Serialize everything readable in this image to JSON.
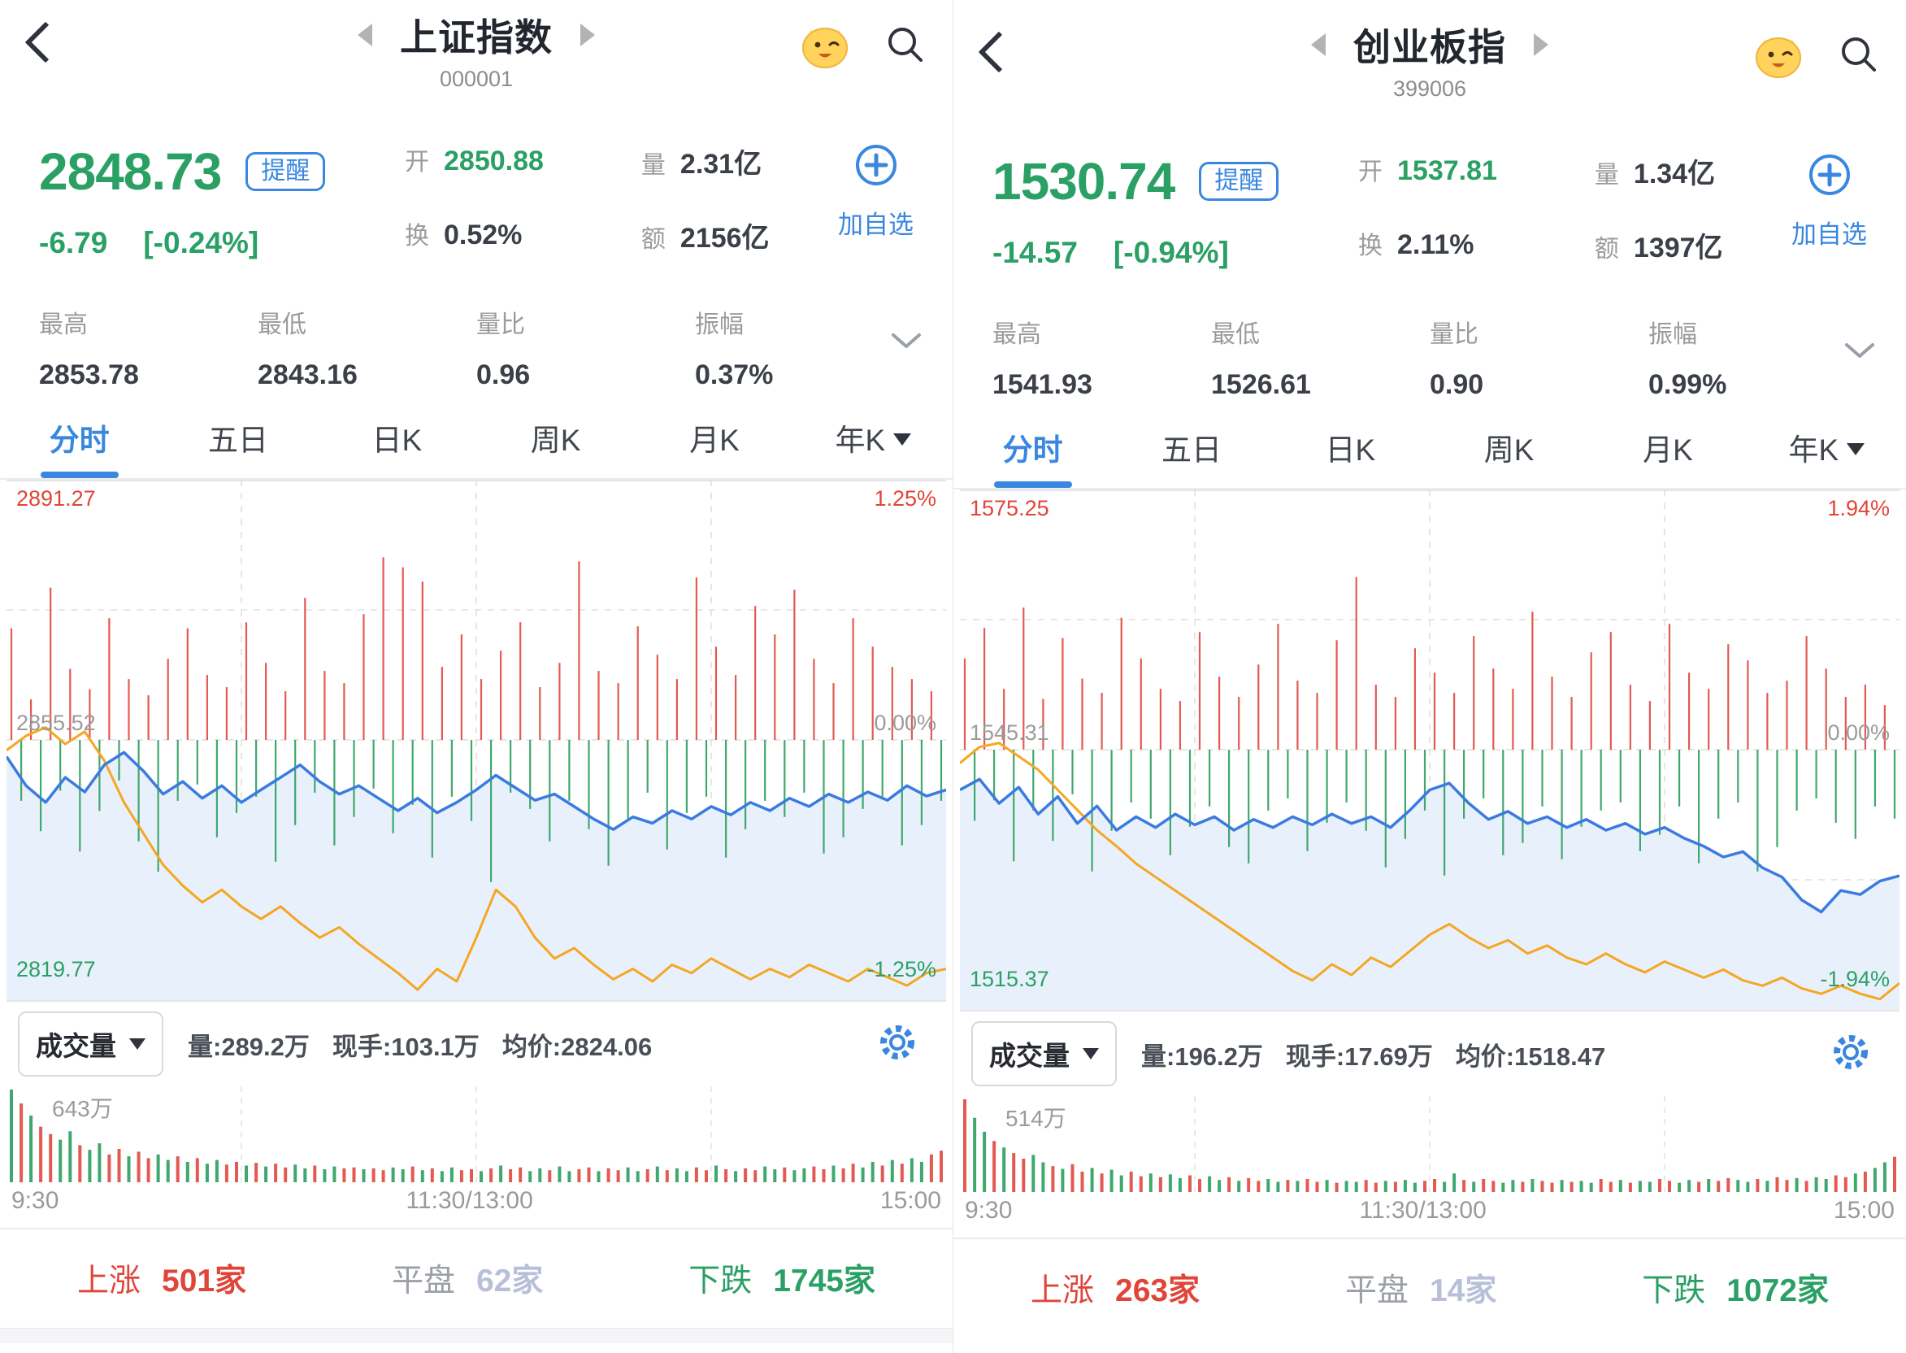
{
  "colors": {
    "up_red": "#e0453a",
    "down_green": "#2ba065",
    "accent_blue": "#3a87e0",
    "line_blue": "#3b7be0",
    "line_orange": "#f5a623",
    "area_fill": "#e7f0fb",
    "text_gray": "#9b9b9b",
    "flat_count": "#b7c0d8"
  },
  "panels": [
    {
      "header": {
        "title": "上证指数",
        "code": "000001"
      },
      "price": {
        "last": "2848.73",
        "alert_label": "提醒",
        "change": "-6.79",
        "change_pct": "[-0.24%]"
      },
      "quotes": {
        "open_label": "开",
        "open": "2850.88",
        "vol_label": "量",
        "vol": "2.31亿",
        "turnover_label": "换",
        "turnover": "0.52%",
        "amount_label": "额",
        "amount": "2156亿"
      },
      "add_watch_label": "加自选",
      "stats": {
        "high_label": "最高",
        "high": "2853.78",
        "low_label": "最低",
        "low": "2843.16",
        "vol_ratio_label": "量比",
        "vol_ratio": "0.96",
        "amplitude_label": "振幅",
        "amplitude": "0.37%"
      },
      "tabs": {
        "t0": "分时",
        "t1": "五日",
        "t2": "日K",
        "t3": "周K",
        "t4": "月K",
        "t5": "年K"
      },
      "chart": {
        "type": "line",
        "axis_pct": 1.25,
        "y_top": "2891.27",
        "y_mid": "2855.52",
        "y_bottom": "2819.77",
        "pct_top": "1.25%",
        "pct_mid": "0.00%",
        "pct_bottom": "-1.25%",
        "price_pct": [
          -0.08,
          -0.22,
          -0.3,
          -0.18,
          -0.25,
          -0.12,
          -0.06,
          -0.15,
          -0.26,
          -0.2,
          -0.28,
          -0.22,
          -0.3,
          -0.24,
          -0.18,
          -0.12,
          -0.2,
          -0.26,
          -0.22,
          -0.28,
          -0.34,
          -0.28,
          -0.35,
          -0.3,
          -0.24,
          -0.17,
          -0.23,
          -0.29,
          -0.26,
          -0.32,
          -0.38,
          -0.43,
          -0.37,
          -0.4,
          -0.34,
          -0.38,
          -0.32,
          -0.36,
          -0.3,
          -0.34,
          -0.28,
          -0.32,
          -0.26,
          -0.3,
          -0.25,
          -0.29,
          -0.22,
          -0.27,
          -0.24
        ],
        "avg_pct": [
          -0.05,
          0.02,
          0.06,
          -0.02,
          0.04,
          -0.1,
          -0.3,
          -0.45,
          -0.6,
          -0.7,
          -0.78,
          -0.72,
          -0.8,
          -0.86,
          -0.8,
          -0.88,
          -0.95,
          -0.9,
          -0.98,
          -1.05,
          -1.12,
          -1.2,
          -1.1,
          -1.16,
          -0.95,
          -0.72,
          -0.8,
          -0.95,
          -1.05,
          -1.0,
          -1.08,
          -1.15,
          -1.1,
          -1.16,
          -1.08,
          -1.12,
          -1.05,
          -1.1,
          -1.15,
          -1.1,
          -1.14,
          -1.08,
          -1.12,
          -1.16,
          -1.1,
          -1.14,
          -1.18,
          -1.12,
          -1.1
        ],
        "ticks": [
          0.55,
          -0.3,
          0.2,
          -0.45,
          0.75,
          -0.25,
          0.35,
          -0.55,
          0.25,
          -0.35,
          0.6,
          -0.2,
          0.3,
          -0.5,
          0.22,
          -0.65,
          0.4,
          -0.3,
          0.55,
          -0.22,
          0.32,
          -0.48,
          0.26,
          -0.36,
          0.58,
          -0.28,
          0.38,
          -0.6,
          0.24,
          -0.42,
          0.7,
          -0.26,
          0.34,
          -0.52,
          0.28,
          -0.38,
          0.62,
          -0.24,
          0.9,
          -0.46,
          0.85,
          -0.32,
          0.78,
          -0.58,
          0.36,
          -0.28,
          0.52,
          -0.4,
          0.3,
          -0.7,
          0.44,
          -0.26,
          0.58,
          -0.34,
          0.26,
          -0.5,
          0.38,
          -0.3,
          0.88,
          -0.44,
          0.34,
          -0.62,
          0.28,
          -0.4,
          0.56,
          -0.26,
          0.42,
          -0.54,
          0.3,
          -0.36,
          0.8,
          -0.28,
          0.46,
          -0.58,
          0.32,
          -0.44,
          0.66,
          -0.3,
          0.52,
          -0.38,
          0.74,
          -0.26,
          0.4,
          -0.56,
          0.28,
          -0.48,
          0.6,
          -0.34,
          0.46,
          -0.28,
          0.36,
          -0.52,
          0.3,
          -0.42,
          0.24,
          -0.3
        ]
      },
      "volume_header": {
        "button_label": "成交量",
        "m1": "量:289.2万",
        "m2": "现手:103.1万",
        "m3": "均价:2824.06"
      },
      "volume": {
        "max_label": "643万",
        "bars": [
          1.0,
          0.85,
          0.72,
          0.6,
          0.52,
          0.46,
          0.55,
          0.4,
          0.35,
          0.42,
          0.3,
          0.36,
          0.28,
          0.33,
          0.26,
          0.3,
          0.24,
          0.28,
          0.22,
          0.26,
          0.2,
          0.24,
          0.19,
          0.22,
          0.18,
          0.21,
          0.17,
          0.2,
          0.16,
          0.19,
          0.15,
          0.18,
          0.14,
          0.17,
          0.15,
          0.16,
          0.14,
          0.15,
          0.13,
          0.16,
          0.14,
          0.17,
          0.13,
          0.15,
          0.12,
          0.16,
          0.13,
          0.14,
          0.12,
          0.15,
          0.18,
          0.14,
          0.16,
          0.12,
          0.15,
          0.13,
          0.17,
          0.12,
          0.14,
          0.16,
          0.12,
          0.15,
          0.13,
          0.16,
          0.12,
          0.14,
          0.17,
          0.13,
          0.15,
          0.12,
          0.16,
          0.13,
          0.18,
          0.14,
          0.12,
          0.15,
          0.13,
          0.17,
          0.14,
          0.16,
          0.13,
          0.15,
          0.17,
          0.14,
          0.18,
          0.15,
          0.2,
          0.16,
          0.22,
          0.18,
          0.24,
          0.2,
          0.26,
          0.22,
          0.3,
          0.34
        ],
        "colors": "grgrrggrggrrgrrggrgrggrr"
      },
      "time_axis": {
        "open": "9:30",
        "mid": "11:30/13:00",
        "close": "15:00"
      },
      "breadth": {
        "up_label": "上涨",
        "up_count": "501家",
        "flat_label": "平盘",
        "flat_count": "62家",
        "down_label": "下跌",
        "down_count": "1745家"
      }
    },
    {
      "header": {
        "title": "创业板指",
        "code": "399006"
      },
      "price": {
        "last": "1530.74",
        "alert_label": "提醒",
        "change": "-14.57",
        "change_pct": "[-0.94%]"
      },
      "quotes": {
        "open_label": "开",
        "open": "1537.81",
        "vol_label": "量",
        "vol": "1.34亿",
        "turnover_label": "换",
        "turnover": "2.11%",
        "amount_label": "额",
        "amount": "1397亿"
      },
      "add_watch_label": "加自选",
      "stats": {
        "high_label": "最高",
        "high": "1541.93",
        "low_label": "最低",
        "low": "1526.61",
        "vol_ratio_label": "量比",
        "vol_ratio": "0.90",
        "amplitude_label": "振幅",
        "amplitude": "0.99%"
      },
      "tabs": {
        "t0": "分时",
        "t1": "五日",
        "t2": "日K",
        "t3": "周K",
        "t4": "月K",
        "t5": "年K"
      },
      "chart": {
        "type": "line",
        "axis_pct": 1.94,
        "y_top": "1575.25",
        "y_mid": "1545.31",
        "y_bottom": "1515.37",
        "pct_top": "1.94%",
        "pct_mid": "0.00%",
        "pct_bottom": "-1.94%",
        "price_pct": [
          -0.3,
          -0.22,
          -0.4,
          -0.28,
          -0.48,
          -0.35,
          -0.55,
          -0.42,
          -0.6,
          -0.5,
          -0.58,
          -0.48,
          -0.56,
          -0.5,
          -0.6,
          -0.52,
          -0.58,
          -0.5,
          -0.56,
          -0.48,
          -0.55,
          -0.5,
          -0.58,
          -0.45,
          -0.3,
          -0.25,
          -0.4,
          -0.52,
          -0.46,
          -0.55,
          -0.5,
          -0.58,
          -0.52,
          -0.6,
          -0.55,
          -0.63,
          -0.58,
          -0.66,
          -0.72,
          -0.8,
          -0.76,
          -0.88,
          -0.95,
          -1.12,
          -1.21,
          -1.05,
          -1.08,
          -0.98,
          -0.94
        ],
        "avg_pct": [
          -0.1,
          0.02,
          0.05,
          -0.05,
          -0.15,
          -0.3,
          -0.45,
          -0.6,
          -0.72,
          -0.85,
          -0.95,
          -1.05,
          -1.15,
          -1.25,
          -1.35,
          -1.45,
          -1.55,
          -1.65,
          -1.72,
          -1.6,
          -1.68,
          -1.55,
          -1.62,
          -1.5,
          -1.38,
          -1.3,
          -1.4,
          -1.48,
          -1.42,
          -1.52,
          -1.46,
          -1.55,
          -1.6,
          -1.52,
          -1.6,
          -1.66,
          -1.58,
          -1.64,
          -1.7,
          -1.64,
          -1.72,
          -1.76,
          -1.7,
          -1.78,
          -1.82,
          -1.76,
          -1.82,
          -1.86,
          -1.74
        ],
        "ticks": [
          0.45,
          -0.35,
          0.6,
          -0.25,
          0.3,
          -0.55,
          0.7,
          -0.3,
          0.25,
          -0.45,
          0.55,
          -0.22,
          0.35,
          -0.6,
          0.28,
          -0.4,
          0.65,
          -0.26,
          0.45,
          -0.34,
          0.3,
          -0.52,
          0.24,
          -0.38,
          0.58,
          -0.28,
          0.36,
          -0.48,
          0.26,
          -0.56,
          0.42,
          -0.3,
          0.62,
          -0.24,
          0.34,
          -0.5,
          0.28,
          -0.36,
          0.54,
          -0.26,
          0.85,
          -0.4,
          0.32,
          -0.58,
          0.26,
          -0.44,
          0.5,
          -0.3,
          0.38,
          -0.62,
          0.28,
          -0.34,
          0.56,
          -0.24,
          0.4,
          -0.52,
          0.3,
          -0.46,
          0.68,
          -0.28,
          0.36,
          -0.54,
          0.26,
          -0.38,
          0.48,
          -0.3,
          0.58,
          -0.26,
          0.32,
          -0.5,
          0.24,
          -0.42,
          0.62,
          -0.28,
          0.38,
          -0.56,
          0.3,
          -0.34,
          0.52,
          -0.26,
          0.44,
          -0.6,
          0.28,
          -0.48,
          0.34,
          -0.3,
          0.56,
          -0.24,
          0.4,
          -0.36,
          0.26,
          -0.44,
          0.32,
          -0.28,
          0.22,
          -0.34
        ]
      },
      "volume_header": {
        "button_label": "成交量",
        "m1": "量:196.2万",
        "m2": "现手:17.69万",
        "m3": "均价:1518.47"
      },
      "volume": {
        "max_label": "514万",
        "bars": [
          1.0,
          0.8,
          0.65,
          0.55,
          0.48,
          0.42,
          0.36,
          0.4,
          0.32,
          0.28,
          0.25,
          0.3,
          0.22,
          0.26,
          0.2,
          0.24,
          0.18,
          0.22,
          0.17,
          0.2,
          0.16,
          0.19,
          0.15,
          0.18,
          0.14,
          0.17,
          0.13,
          0.16,
          0.12,
          0.15,
          0.12,
          0.14,
          0.11,
          0.13,
          0.12,
          0.14,
          0.11,
          0.13,
          0.1,
          0.12,
          0.11,
          0.13,
          0.1,
          0.12,
          0.11,
          0.13,
          0.1,
          0.12,
          0.14,
          0.11,
          0.2,
          0.13,
          0.11,
          0.14,
          0.12,
          0.1,
          0.13,
          0.11,
          0.14,
          0.12,
          0.1,
          0.13,
          0.11,
          0.12,
          0.1,
          0.14,
          0.11,
          0.13,
          0.1,
          0.12,
          0.11,
          0.14,
          0.12,
          0.1,
          0.13,
          0.11,
          0.14,
          0.12,
          0.15,
          0.13,
          0.11,
          0.14,
          0.12,
          0.16,
          0.13,
          0.15,
          0.12,
          0.16,
          0.14,
          0.18,
          0.16,
          0.2,
          0.22,
          0.26,
          0.32,
          0.38
        ],
        "colors": "rggrgrrggrgrrgrggrrgrggr"
      },
      "time_axis": {
        "open": "9:30",
        "mid": "11:30/13:00",
        "close": "15:00"
      },
      "breadth": {
        "up_label": "上涨",
        "up_count": "263家",
        "flat_label": "平盘",
        "flat_count": "14家",
        "down_label": "下跌",
        "down_count": "1072家"
      }
    }
  ]
}
